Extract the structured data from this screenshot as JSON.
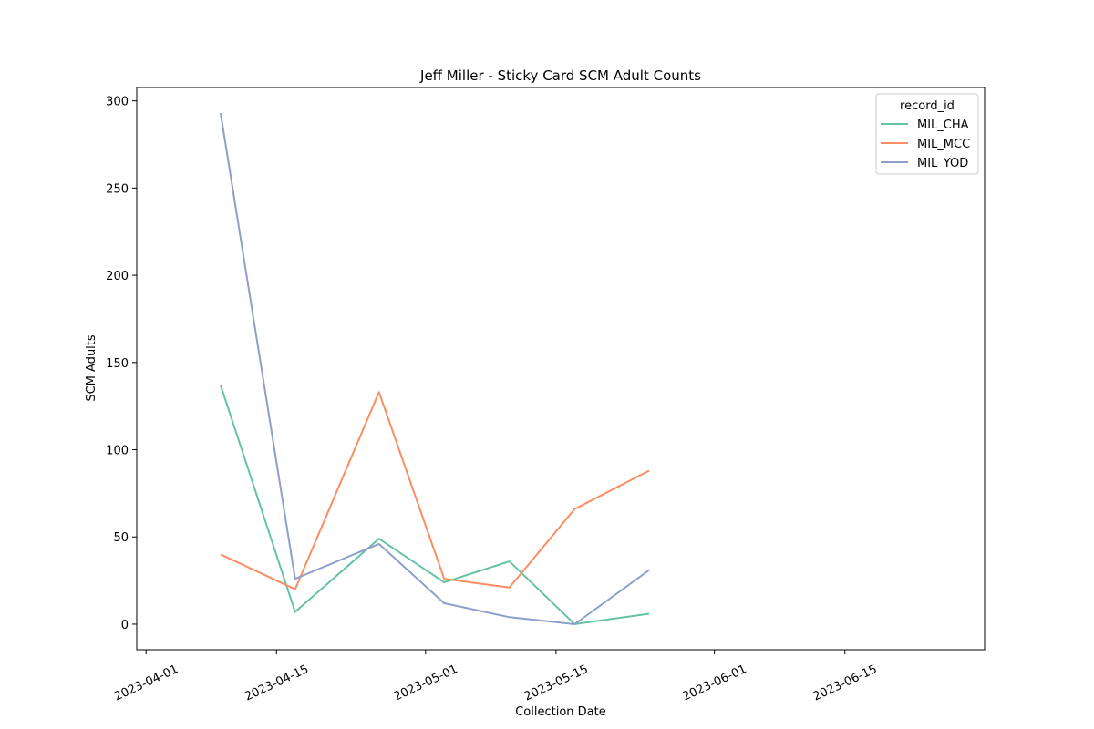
{
  "chart_data": {
    "type": "line",
    "title": "Jeff Miller - Sticky Card SCM Adult Counts",
    "xlabel": "Collection Date",
    "ylabel": "SCM Adults",
    "x_type": "date",
    "xlim": [
      "2023-03-31",
      "2023-06-30"
    ],
    "ylim": [
      -14.65,
      307.65
    ],
    "x_ticks": [
      "2023-04-01",
      "2023-04-15",
      "2023-05-01",
      "2023-05-15",
      "2023-06-01",
      "2023-06-15"
    ],
    "y_ticks": [
      0,
      50,
      100,
      150,
      200,
      250,
      300
    ],
    "grid": false,
    "legend": {
      "title": "record_id",
      "placement": "top-right"
    },
    "series": [
      {
        "name": "MIL_CHA",
        "color": "#66c2a5",
        "x": [
          "2023-04-09",
          "2023-04-17",
          "2023-04-26",
          "2023-05-03",
          "2023-05-10",
          "2023-05-17",
          "2023-05-25"
        ],
        "values": [
          137,
          7,
          49,
          24,
          36,
          0,
          6
        ]
      },
      {
        "name": "MIL_MCC",
        "color": "#fc8d62",
        "x": [
          "2023-04-09",
          "2023-04-17",
          "2023-04-26",
          "2023-05-03",
          "2023-05-10",
          "2023-05-17",
          "2023-05-25"
        ],
        "values": [
          40,
          20,
          133,
          26,
          21,
          66,
          88
        ]
      },
      {
        "name": "MIL_YOD",
        "color": "#8da0cb",
        "x": [
          "2023-04-09",
          "2023-04-17",
          "2023-04-26",
          "2023-05-03",
          "2023-05-10",
          "2023-05-17",
          "2023-05-25"
        ],
        "values": [
          293,
          26,
          46,
          12,
          4,
          0,
          31
        ]
      }
    ]
  }
}
